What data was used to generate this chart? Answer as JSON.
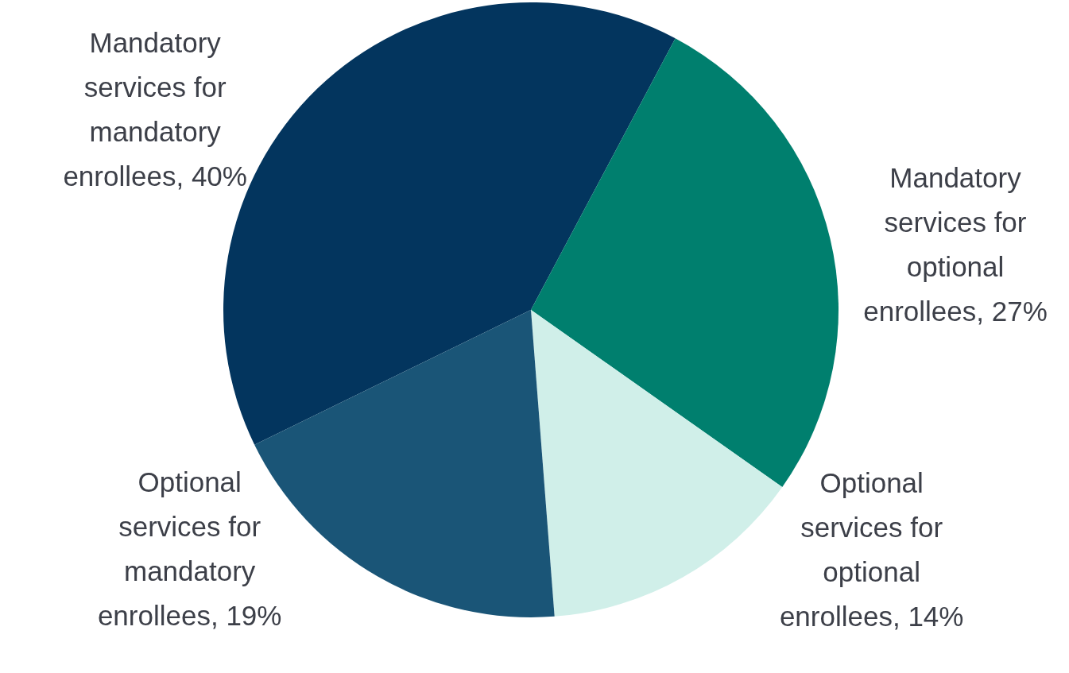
{
  "chart_data": {
    "type": "pie",
    "categories": [
      "Mandatory services for mandatory enrollees, 40%",
      "Mandatory services for optional enrollees, 27%",
      "Optional services for optional enrollees, 14%",
      "Optional services for mandatory enrollees, 19%"
    ],
    "values": [
      40,
      27,
      14,
      19
    ],
    "colors": [
      "#03355e",
      "#007f6e",
      "#d0efe9",
      "#1a5577"
    ]
  }
}
